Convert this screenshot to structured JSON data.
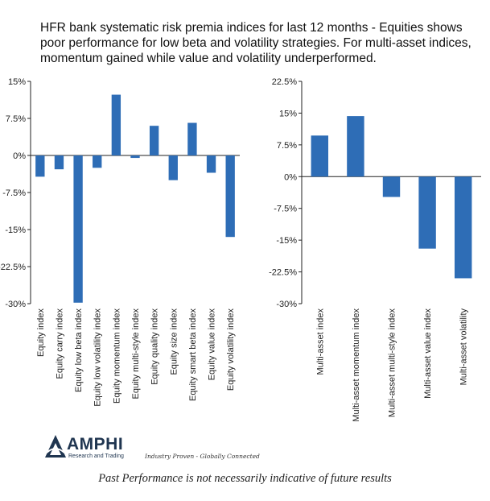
{
  "title": "HFR bank systematic risk premia indices for last 12 months - Equities shows poor performance for low beta and volatility strategies. For multi-asset indices, momentum gained while value and volatility underperformed.",
  "logo": {
    "name": "AMPHI",
    "subtitle": "Research and Trading",
    "tagline": "Industry Proven - Globally Connected"
  },
  "disclaimer": "Past Performance is not necessarily indicative of future results",
  "colors": {
    "bar": "#2e6db6",
    "axis": "#222222"
  },
  "chart_data": [
    {
      "type": "bar",
      "categories": [
        "Equity index",
        "Equity carry index",
        "Equity low beta index",
        "Equity low volatility index",
        "Equity momentum index",
        "Equity multi-style index",
        "Equity quality index",
        "Equity size index",
        "Equity smart beta index",
        "Equity value index",
        "Equity volatility index"
      ],
      "values": [
        -4.3,
        -2.8,
        -29.8,
        -2.5,
        12.3,
        -0.5,
        6.0,
        -5.0,
        6.6,
        -3.5,
        -16.5
      ],
      "ylim": [
        -30,
        15
      ],
      "yticks": [
        "15%",
        "7.5%",
        "0%",
        "-7.5%",
        "-15%",
        "-22.5%",
        "-30%"
      ],
      "yticks_values": [
        15,
        7.5,
        0,
        -7.5,
        -15,
        -22.5,
        -30
      ],
      "grid": false
    },
    {
      "type": "bar",
      "categories": [
        "Multi-asset index",
        "Multi-asset momentum index",
        "Multi-asset multi-style index",
        "Multi-asset value index",
        "Multi-asset volatility"
      ],
      "values": [
        9.7,
        14.3,
        -4.8,
        -17.0,
        -24.0
      ],
      "ylim": [
        -30,
        22.5
      ],
      "yticks": [
        "22.5%",
        "15%",
        "7.5%",
        "0%",
        "-7.5%",
        "-15%",
        "-22.5%",
        "-30%"
      ],
      "yticks_values": [
        22.5,
        15,
        7.5,
        0,
        -7.5,
        -15,
        -22.5,
        -30
      ],
      "grid": false
    }
  ]
}
